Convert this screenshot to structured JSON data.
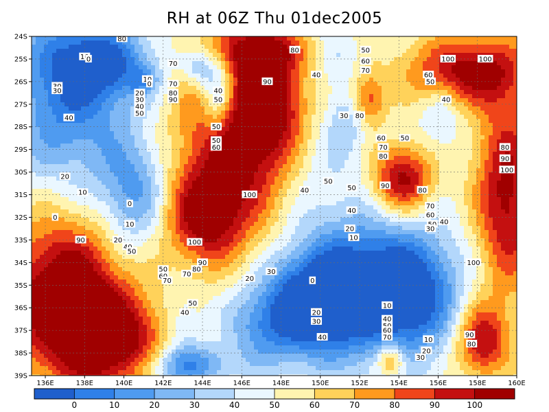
{
  "chart_data": {
    "type": "heatmap",
    "title": "RH at 06Z Thu 01dec2005",
    "xlabel": "",
    "ylabel": "",
    "x_ticks": [
      "136E",
      "138E",
      "140E",
      "142E",
      "144E",
      "146E",
      "148E",
      "150E",
      "152E",
      "154E",
      "156E",
      "158E",
      "160E"
    ],
    "x_tick_values": [
      136,
      138,
      140,
      142,
      144,
      146,
      148,
      150,
      152,
      154,
      156,
      158,
      160
    ],
    "y_ticks": [
      "24S",
      "25S",
      "26S",
      "27S",
      "28S",
      "29S",
      "30S",
      "31S",
      "32S",
      "33S",
      "34S",
      "35S",
      "36S",
      "37S",
      "38S",
      "39S"
    ],
    "y_tick_values": [
      -24,
      -25,
      -26,
      -27,
      -28,
      -29,
      -30,
      -31,
      -32,
      -33,
      -34,
      -35,
      -36,
      -37,
      -38,
      -39
    ],
    "xlim": [
      135.3,
      160
    ],
    "ylim": [
      -39,
      -24
    ],
    "grid": true,
    "colorbar": {
      "labels": [
        "0",
        "10",
        "20",
        "30",
        "40",
        "50",
        "60",
        "70",
        "80",
        "90",
        "100"
      ],
      "colors": [
        "#1f5fcc",
        "#2f80e8",
        "#4f9bf0",
        "#7fb8f5",
        "#b3d7fb",
        "#eaf7ff",
        "#fff4b0",
        "#ffd25a",
        "#ff9a1e",
        "#f0451a",
        "#c41010",
        "#a00000"
      ]
    },
    "contour_labels": [
      {
        "text": "10",
        "lon": 138.0,
        "lat": -24.9
      },
      {
        "text": "0",
        "lon": 138.2,
        "lat": -25.0
      },
      {
        "text": "30",
        "lon": 136.6,
        "lat": -26.2
      },
      {
        "text": "30",
        "lon": 136.6,
        "lat": -26.4
      },
      {
        "text": "40",
        "lon": 137.2,
        "lat": -27.6
      },
      {
        "text": "20",
        "lon": 137.0,
        "lat": -30.2
      },
      {
        "text": "10",
        "lon": 137.9,
        "lat": -30.9
      },
      {
        "text": "0",
        "lon": 140.3,
        "lat": -31.4
      },
      {
        "text": "0",
        "lon": 136.5,
        "lat": -32.0
      },
      {
        "text": "10",
        "lon": 140.3,
        "lat": -32.3
      },
      {
        "text": "90",
        "lon": 137.8,
        "lat": -33.0
      },
      {
        "text": "20",
        "lon": 139.7,
        "lat": -33.0
      },
      {
        "text": "40",
        "lon": 140.2,
        "lat": -33.3
      },
      {
        "text": "50",
        "lon": 140.4,
        "lat": -33.5
      },
      {
        "text": "80",
        "lon": 139.9,
        "lat": -24.1
      },
      {
        "text": "70",
        "lon": 142.5,
        "lat": -25.2
      },
      {
        "text": "10",
        "lon": 141.2,
        "lat": -25.9
      },
      {
        "text": "0",
        "lon": 141.3,
        "lat": -26.1
      },
      {
        "text": "70",
        "lon": 142.5,
        "lat": -26.1
      },
      {
        "text": "80",
        "lon": 142.5,
        "lat": -26.5
      },
      {
        "text": "90",
        "lon": 142.5,
        "lat": -26.8
      },
      {
        "text": "20",
        "lon": 140.8,
        "lat": -26.5
      },
      {
        "text": "30",
        "lon": 140.8,
        "lat": -26.8
      },
      {
        "text": "40",
        "lon": 140.8,
        "lat": -27.1
      },
      {
        "text": "50",
        "lon": 140.8,
        "lat": -27.4
      },
      {
        "text": "40",
        "lon": 144.8,
        "lat": -26.4
      },
      {
        "text": "50",
        "lon": 144.8,
        "lat": -26.8
      },
      {
        "text": "50",
        "lon": 144.7,
        "lat": -28.0
      },
      {
        "text": "50",
        "lon": 144.7,
        "lat": -28.6
      },
      {
        "text": "60",
        "lon": 144.7,
        "lat": -28.9
      },
      {
        "text": "90",
        "lon": 147.3,
        "lat": -26.0
      },
      {
        "text": "80",
        "lon": 148.7,
        "lat": -24.6
      },
      {
        "text": "100",
        "lon": 146.4,
        "lat": -31.0
      },
      {
        "text": "100",
        "lon": 143.6,
        "lat": -33.1
      },
      {
        "text": "90",
        "lon": 144.0,
        "lat": -34.0
      },
      {
        "text": "80",
        "lon": 143.7,
        "lat": -34.3
      },
      {
        "text": "70",
        "lon": 143.2,
        "lat": -34.5
      },
      {
        "text": "50",
        "lon": 142.0,
        "lat": -34.3
      },
      {
        "text": "60",
        "lon": 142.0,
        "lat": -34.6
      },
      {
        "text": "70",
        "lon": 142.2,
        "lat": -34.8
      },
      {
        "text": "40",
        "lon": 149.2,
        "lat": -30.8
      },
      {
        "text": "40",
        "lon": 149.8,
        "lat": -25.7
      },
      {
        "text": "30",
        "lon": 151.2,
        "lat": -27.5
      },
      {
        "text": "50",
        "lon": 151.6,
        "lat": -30.7
      },
      {
        "text": "50",
        "lon": 150.4,
        "lat": -30.4
      },
      {
        "text": "40",
        "lon": 151.6,
        "lat": -31.7
      },
      {
        "text": "50",
        "lon": 152.3,
        "lat": -24.6
      },
      {
        "text": "60",
        "lon": 152.3,
        "lat": -25.1
      },
      {
        "text": "70",
        "lon": 152.3,
        "lat": -25.5
      },
      {
        "text": "80",
        "lon": 152.0,
        "lat": -27.5
      },
      {
        "text": "60",
        "lon": 153.1,
        "lat": -28.5
      },
      {
        "text": "70",
        "lon": 153.2,
        "lat": -28.9
      },
      {
        "text": "80",
        "lon": 153.2,
        "lat": -29.3
      },
      {
        "text": "90",
        "lon": 153.3,
        "lat": -30.6
      },
      {
        "text": "80",
        "lon": 155.2,
        "lat": -30.8
      },
      {
        "text": "70",
        "lon": 155.6,
        "lat": -31.5
      },
      {
        "text": "60",
        "lon": 155.6,
        "lat": -31.9
      },
      {
        "text": "50",
        "lon": 155.7,
        "lat": -32.3
      },
      {
        "text": "40",
        "lon": 156.3,
        "lat": -32.2
      },
      {
        "text": "30",
        "lon": 155.6,
        "lat": -32.5
      },
      {
        "text": "50",
        "lon": 154.3,
        "lat": -28.5
      },
      {
        "text": "60",
        "lon": 155.5,
        "lat": -25.7
      },
      {
        "text": "50",
        "lon": 155.6,
        "lat": -26.0
      },
      {
        "text": "40",
        "lon": 156.4,
        "lat": -26.8
      },
      {
        "text": "100",
        "lon": 156.5,
        "lat": -25.0
      },
      {
        "text": "100",
        "lon": 158.4,
        "lat": -25.0
      },
      {
        "text": "80",
        "lon": 159.4,
        "lat": -28.9
      },
      {
        "text": "90",
        "lon": 159.4,
        "lat": -29.4
      },
      {
        "text": "100",
        "lon": 159.5,
        "lat": -29.9
      },
      {
        "text": "100",
        "lon": 157.8,
        "lat": -34.0
      },
      {
        "text": "20",
        "lon": 151.5,
        "lat": -32.5
      },
      {
        "text": "10",
        "lon": 151.7,
        "lat": -32.9
      },
      {
        "text": "30",
        "lon": 147.5,
        "lat": -34.4
      },
      {
        "text": "20",
        "lon": 146.4,
        "lat": -34.7
      },
      {
        "text": "0",
        "lon": 149.6,
        "lat": -34.8
      },
      {
        "text": "10",
        "lon": 153.4,
        "lat": -35.9
      },
      {
        "text": "20",
        "lon": 149.8,
        "lat": -36.2
      },
      {
        "text": "30",
        "lon": 149.8,
        "lat": -36.6
      },
      {
        "text": "40",
        "lon": 150.1,
        "lat": -37.3
      },
      {
        "text": "40",
        "lon": 143.1,
        "lat": -36.2
      },
      {
        "text": "50",
        "lon": 143.5,
        "lat": -35.8
      },
      {
        "text": "40",
        "lon": 153.4,
        "lat": -36.5
      },
      {
        "text": "50",
        "lon": 153.4,
        "lat": -36.8
      },
      {
        "text": "60",
        "lon": 153.4,
        "lat": -37.0
      },
      {
        "text": "70",
        "lon": 153.4,
        "lat": -37.3
      },
      {
        "text": "10",
        "lon": 155.5,
        "lat": -37.4
      },
      {
        "text": "20",
        "lon": 155.4,
        "lat": -37.9
      },
      {
        "text": "30",
        "lon": 155.1,
        "lat": -38.2
      },
      {
        "text": "90",
        "lon": 157.6,
        "lat": -37.2
      },
      {
        "text": "80",
        "lon": 157.7,
        "lat": -37.6
      }
    ]
  }
}
